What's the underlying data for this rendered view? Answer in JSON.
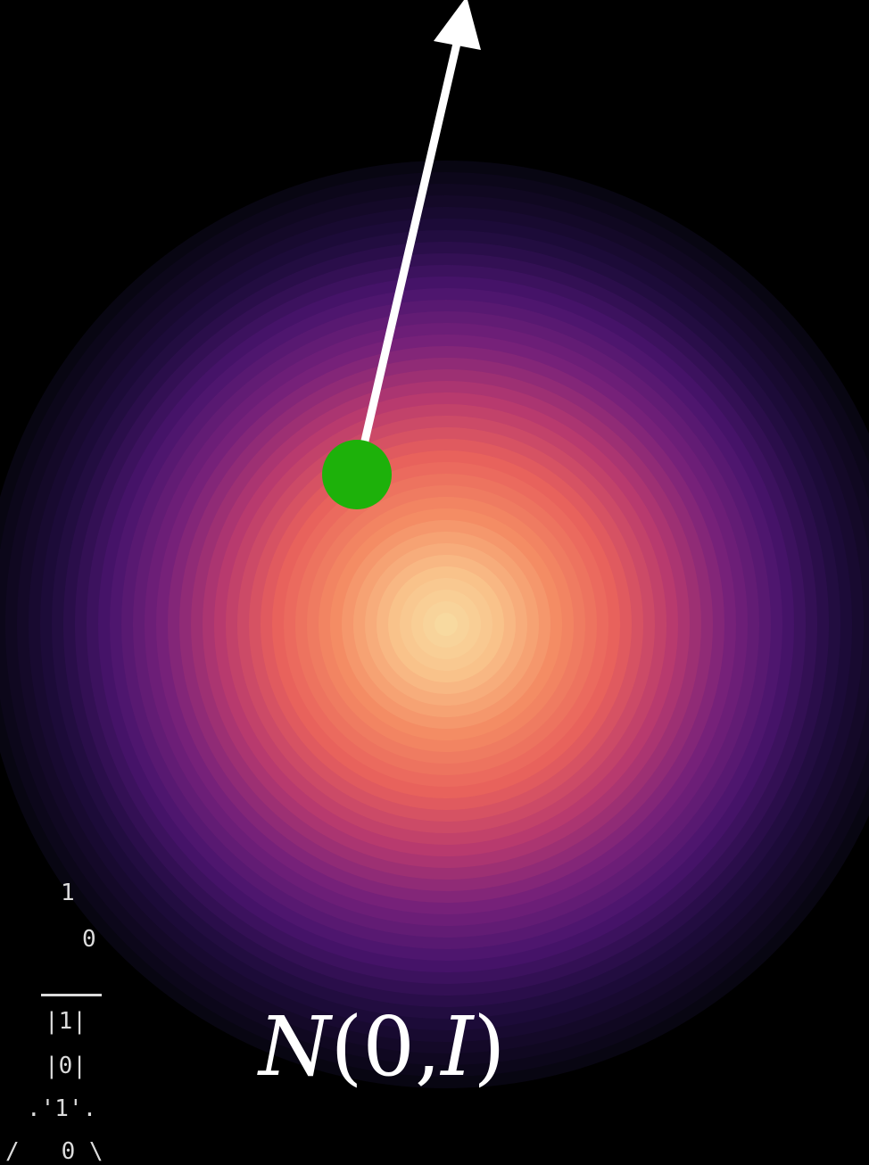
{
  "formula": {
    "script_n": "N",
    "open": "(",
    "zero": "0",
    "comma": ",",
    "identity": "I",
    "close": ")"
  },
  "ascii_art": {
    "line1": "1",
    "line2": "0",
    "line3": "|1|",
    "line4": "|0|",
    "line5": ".'1'.",
    "line6": "/   0 \\"
  },
  "colors": {
    "background": "#000000",
    "density_center": "#f8dea4",
    "density_mid": "#ee6b5a",
    "density_outer": "#4a1476",
    "density_edge": "#0b0818",
    "point": "#1db10a",
    "arrow": "#ffffff"
  },
  "density": {
    "distribution": "standard-normal",
    "bands": 40
  }
}
